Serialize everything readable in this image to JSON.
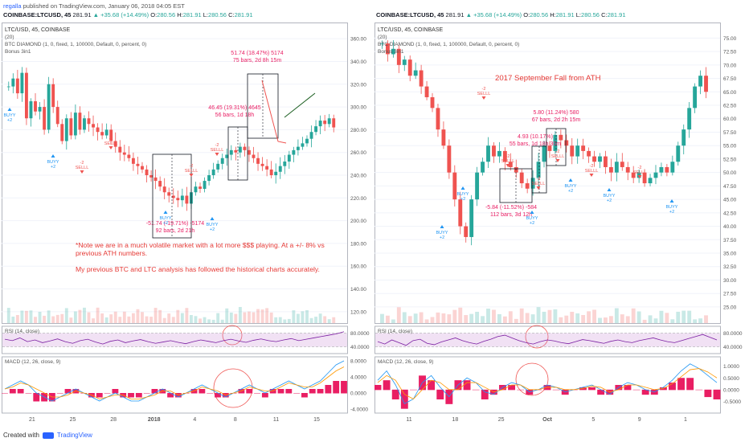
{
  "header": {
    "user": "regalla",
    "published": "published on TradingView.com, January 06, 2018 04:05 EST"
  },
  "footer": {
    "created_with": "Created with",
    "brand": "TradingView"
  },
  "colors": {
    "up": "#26a69a",
    "down": "#ef5350",
    "rsi": "#7b1fa2",
    "macd_hist": "#e91e63",
    "annotation": "#e91e63",
    "note": "#e53935"
  },
  "chart_data": [
    {
      "type": "candlestick",
      "symbol_line": {
        "symbol": "COINBASE:LTCUSD, 45",
        "last": "281.91",
        "change": "▲ +35.68 (+14.49%)",
        "o_label": "O:",
        "o": "280.56",
        "h_label": "H:",
        "h": "281.91",
        "l_label": "L:",
        "l": "280.56",
        "c_label": "C:",
        "c": "281.91"
      },
      "legend": {
        "title": "LTC/USD, 45, COINBASE",
        "sub1": "(20)",
        "sub2": "BTC DIAMOND (1, 0, fixed, 1, 100000, Default, 0, percent, 0)",
        "sub3": "Bonus 3in1"
      },
      "ylim": [
        110,
        370
      ],
      "y_ticks": [
        "360.00",
        "340.00",
        "320.00",
        "300.00",
        "280.00",
        "260.00",
        "240.00",
        "220.00",
        "200.00",
        "180.00",
        "160.00",
        "140.00",
        "120.00"
      ],
      "x_ticks": [
        "21",
        "25",
        "28",
        "2018",
        "4",
        "8",
        "11",
        "15"
      ],
      "series_close": [
        318,
        325,
        312,
        330,
        290,
        305,
        296,
        300,
        280,
        320,
        300,
        285,
        270,
        290,
        275,
        295,
        280,
        290,
        285,
        282,
        278,
        275,
        280,
        270,
        265,
        260,
        258,
        255,
        250,
        248,
        245,
        240,
        238,
        235,
        230,
        225,
        222,
        220,
        218,
        222,
        215,
        225,
        230,
        228,
        235,
        240,
        245,
        250,
        255,
        258,
        262,
        260,
        265,
        262,
        258,
        255,
        250,
        248,
        245,
        240,
        243,
        248,
        252,
        258,
        262,
        265,
        268,
        272,
        278,
        283,
        288,
        285,
        290,
        282
      ],
      "annotations": [
        {
          "lines": [
            "-51.74 (-19.71%) -5174",
            "92 bars, 2d 21h"
          ]
        },
        {
          "lines": [
            "46.45 (19.31%) 4645",
            "56 bars, 1d 18h"
          ]
        },
        {
          "lines": [
            "51.74 (18.47%) 5174",
            "75 bars, 2d 8h 15m"
          ]
        }
      ],
      "note": [
        "*Note we are in a much volatile market with a lot more $$$ playing. At a +/- 8% vs",
        "previous ATH numbers.",
        "",
        "My previous BTC and LTC analysis has followed the historical charts accurately."
      ],
      "signals": {
        "buy": "BUYY",
        "sell": "SELLL",
        "plus": "+2",
        "minus": "-2"
      },
      "rsi": {
        "label": "RSI (14, close)",
        "ticks": [
          "80.0000",
          "40.0000"
        ],
        "ylim": [
          20,
          100
        ],
        "values": [
          62,
          58,
          66,
          55,
          60,
          52,
          57,
          63,
          55,
          50,
          58,
          62,
          54,
          48,
          56,
          60,
          52,
          57,
          61,
          55,
          50,
          54,
          58,
          53,
          49,
          55,
          60,
          56,
          52,
          58,
          62,
          57,
          53,
          59,
          63,
          58,
          55,
          60,
          64,
          58,
          62,
          66,
          70,
          74,
          78,
          84
        ]
      },
      "macd": {
        "label": "MACD (12, 26, close, 9)",
        "ticks": [
          "8.0000",
          "4.0000",
          "0.0000",
          "-4.0000"
        ],
        "ylim": [
          -5,
          9
        ],
        "line": [
          1,
          2,
          3,
          2,
          0,
          -1,
          -2,
          -1,
          0,
          1,
          0,
          -1,
          -2,
          -1,
          0,
          -1,
          -2,
          -2,
          -1,
          0,
          1,
          0,
          -1,
          0,
          1,
          2,
          1,
          0,
          -1,
          0,
          1,
          2,
          1,
          0,
          1,
          2,
          3,
          2,
          1,
          2,
          3,
          5,
          7,
          8
        ],
        "signal": [
          1,
          1.5,
          2.5,
          2,
          1,
          0,
          -1,
          -1,
          -0.5,
          0.5,
          0,
          -0.5,
          -1.5,
          -1,
          -0.5,
          -0.5,
          -1.5,
          -1.5,
          -1,
          -0.5,
          0.5,
          0.5,
          -0.5,
          0,
          0.5,
          1.5,
          1,
          0.5,
          -0.5,
          0,
          0.5,
          1.5,
          1,
          0.5,
          0.5,
          1.5,
          2.5,
          2,
          1.5,
          1.5,
          2.5,
          4,
          5.5,
          6.5
        ]
      }
    },
    {
      "type": "candlestick",
      "symbol_line": {
        "symbol": "COINBASE:LTCUSD, 45",
        "last": "281.91",
        "change": "▲ +35.68 (+14.49%)",
        "o_label": "O:",
        "o": "280.56",
        "h_label": "H:",
        "h": "281.91",
        "l_label": "L:",
        "l": "280.56",
        "c_label": "C:",
        "c": "281.91"
      },
      "legend": {
        "title": "LTC/USD, 45, COINBASE",
        "sub1": "(20)",
        "sub2": "BTC DIAMOND (1, 0, fixed, 1, 100000, Default, 0, percent, 0)",
        "sub3": "Bonus 3in1"
      },
      "ylim": [
        22,
        77
      ],
      "y_ticks": [
        "75.00",
        "72.50",
        "70.00",
        "67.50",
        "65.00",
        "62.50",
        "60.00",
        "57.50",
        "55.00",
        "52.50",
        "50.00",
        "47.50",
        "45.00",
        "42.50",
        "40.00",
        "37.50",
        "35.00",
        "32.50",
        "30.00",
        "27.50",
        "25.00"
      ],
      "x_ticks": [
        "11",
        "18",
        "25",
        "Oct",
        "5",
        "9",
        "1"
      ],
      "series_close": [
        74,
        72,
        73,
        70,
        71,
        68,
        69,
        66,
        64,
        62,
        58,
        55,
        50,
        45,
        40,
        38,
        45,
        50,
        52,
        55,
        53,
        54,
        52,
        51,
        50,
        48,
        47,
        49,
        52,
        55,
        54,
        57,
        56,
        55,
        53,
        55,
        54,
        53,
        52,
        53,
        51,
        50,
        52,
        51,
        50,
        49,
        50,
        48,
        49,
        50,
        51,
        50,
        52,
        55,
        58,
        62,
        66,
        68,
        65
      ],
      "annotations": [
        {
          "lines": [
            "-5.84 (-11.52%) -584",
            "112 bars, 3d 12h"
          ]
        },
        {
          "lines": [
            "4.93 (10.17%)",
            "55 bars, 1d 18h 30m"
          ]
        },
        {
          "lines": [
            "5.80 (11.24%) 580",
            "67 bars, 2d 2h 15m"
          ]
        }
      ],
      "note": [
        "2017 September Fall from ATH"
      ],
      "signals": {
        "buy": "BUYY",
        "sell": "SELLL",
        "plus": "+2",
        "minus": "-2"
      },
      "rsi": {
        "label": "RSI (14, close)",
        "ticks": [
          "80.0000",
          "40.0000"
        ],
        "ylim": [
          20,
          100
        ],
        "values": [
          55,
          48,
          60,
          52,
          44,
          58,
          62,
          50,
          46,
          54,
          60,
          66,
          58,
          52,
          48,
          56,
          62,
          70,
          74,
          66,
          58,
          52,
          48,
          55,
          60,
          57,
          52,
          49,
          55,
          61,
          58,
          54,
          50,
          56,
          60,
          55,
          52,
          58,
          62,
          66,
          60,
          55,
          52,
          58,
          64,
          70,
          76,
          68,
          60
        ]
      },
      "macd": {
        "label": "MACD (12, 26, close, 9)",
        "ticks": [
          "1.0000",
          "0.5000",
          "0.0000",
          "-0.5000"
        ],
        "ylim": [
          -1,
          1.4
        ],
        "line": [
          0.4,
          0.8,
          0.2,
          -0.6,
          -0.4,
          0.3,
          0.6,
          0.1,
          -0.3,
          0.2,
          0.5,
          0.3,
          -0.1,
          -0.2,
          0.1,
          0.3,
          0.2,
          -0.1,
          0.0,
          0.2,
          0.1,
          -0.1,
          0.0,
          0.1,
          0.2,
          0.0,
          -0.2,
          0.1,
          0.3,
          0.2,
          0.0,
          -0.1,
          0.1,
          0.4,
          0.8,
          1.1,
          0.9,
          0.6,
          0.3
        ],
        "signal": [
          0.3,
          0.6,
          0.4,
          -0.2,
          -0.4,
          0.0,
          0.4,
          0.3,
          0.0,
          0.0,
          0.3,
          0.3,
          0.1,
          -0.1,
          0.0,
          0.2,
          0.2,
          0.0,
          0.0,
          0.1,
          0.1,
          0.0,
          0.0,
          0.05,
          0.15,
          0.1,
          -0.1,
          0.0,
          0.2,
          0.2,
          0.1,
          0.0,
          0.05,
          0.25,
          0.55,
          0.85,
          0.9,
          0.75,
          0.5
        ]
      }
    }
  ]
}
